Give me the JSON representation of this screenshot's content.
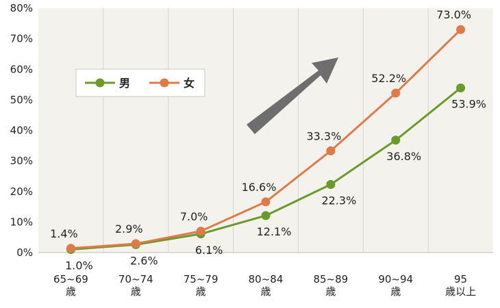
{
  "chart_data": {
    "type": "line",
    "categories": [
      [
        "65~69",
        "歳"
      ],
      [
        "70~74",
        "歳"
      ],
      [
        "75~79",
        "歳"
      ],
      [
        "80~84",
        "歳"
      ],
      [
        "85~89",
        "歳"
      ],
      [
        "90~94",
        "歳"
      ],
      [
        "95",
        "歳以上"
      ]
    ],
    "y_ticks": [
      "0%",
      "10%",
      "20%",
      "30%",
      "40%",
      "50%",
      "60%",
      "70%",
      "80%"
    ],
    "ylim": [
      0,
      80
    ],
    "series": [
      {
        "name": "男",
        "color": "#6b9a2b",
        "values": [
          1.0,
          2.6,
          6.1,
          12.1,
          22.3,
          36.8,
          53.9
        ],
        "labels": [
          "1.0%",
          "2.6%",
          "6.1%",
          "12.1%",
          "22.3%",
          "36.8%",
          "53.9%"
        ]
      },
      {
        "name": "女",
        "color": "#e07b47",
        "values": [
          1.4,
          2.9,
          7.0,
          16.6,
          33.3,
          52.2,
          73.0
        ],
        "labels": [
          "1.4%",
          "2.9%",
          "7.0%",
          "16.6%",
          "33.3%",
          "52.2%",
          "73.0%"
        ]
      }
    ],
    "legend": {
      "placement": "upper-left"
    },
    "grid": {
      "vertical": true,
      "horizontal": false
    },
    "background_color": "#f3f2ec",
    "arrow_color": "#6e6e6e"
  }
}
